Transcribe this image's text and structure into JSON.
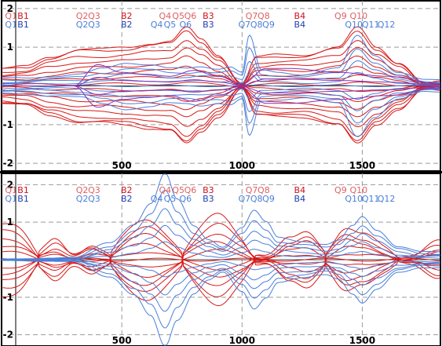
{
  "chart_data": [
    {
      "type": "line",
      "title": "",
      "xlabel": "",
      "ylabel": "",
      "xlim": [
        0,
        1825
      ],
      "ylim": [
        -2.2,
        2.2
      ],
      "grid": true,
      "x_ticks": [
        500,
        1000,
        1500
      ],
      "y_ticks": [
        2,
        1,
        -1,
        -2
      ],
      "markers_top": [
        {
          "label": "Q1",
          "x": 40,
          "color": "#e06060"
        },
        {
          "label": "B1",
          "x": 90,
          "color": "#d0101a"
        },
        {
          "label": "Q2",
          "x": 335,
          "color": "#e06060"
        },
        {
          "label": "Q3",
          "x": 385,
          "color": "#e06060"
        },
        {
          "label": "B2",
          "x": 520,
          "color": "#d0101a"
        },
        {
          "label": "Q4",
          "x": 680,
          "color": "#e06060"
        },
        {
          "label": "Q5",
          "x": 735,
          "color": "#e06060"
        },
        {
          "label": "Q6",
          "x": 785,
          "color": "#e06060"
        },
        {
          "label": "B3",
          "x": 860,
          "color": "#d0101a"
        },
        {
          "label": "Q7",
          "x": 1040,
          "color": "#e06060"
        },
        {
          "label": "Q8",
          "x": 1090,
          "color": "#e06060"
        },
        {
          "label": "B4",
          "x": 1240,
          "color": "#d0101a"
        },
        {
          "label": "Q9",
          "x": 1410,
          "color": "#e06060"
        },
        {
          "label": "Q10",
          "x": 1485,
          "color": "#e06060"
        }
      ],
      "markers_bottom": [
        {
          "label": "Q1",
          "x": 40,
          "color": "#4a7fd8"
        },
        {
          "label": "B1",
          "x": 90,
          "color": "#2040b0"
        },
        {
          "label": "Q2",
          "x": 335,
          "color": "#4a7fd8"
        },
        {
          "label": "Q3",
          "x": 385,
          "color": "#4a7fd8"
        },
        {
          "label": "B2",
          "x": 520,
          "color": "#2040b0"
        },
        {
          "label": "Q4",
          "x": 645,
          "color": "#4a7fd8"
        },
        {
          "label": "Q5",
          "x": 700,
          "color": "#4a7fd8"
        },
        {
          "label": "Q6",
          "x": 765,
          "color": "#4a7fd8"
        },
        {
          "label": "B3",
          "x": 860,
          "color": "#2040b0"
        },
        {
          "label": "Q7",
          "x": 1010,
          "color": "#4a7fd8"
        },
        {
          "label": "Q8",
          "x": 1060,
          "color": "#4a7fd8"
        },
        {
          "label": "Q9",
          "x": 1110,
          "color": "#4a7fd8"
        },
        {
          "label": "B4",
          "x": 1240,
          "color": "#2040b0"
        },
        {
          "label": "Q10",
          "x": 1465,
          "color": "#4a7fd8"
        },
        {
          "label": "Q11",
          "x": 1535,
          "color": "#4a7fd8"
        },
        {
          "label": "Q12",
          "x": 1600,
          "color": "#4a7fd8"
        }
      ],
      "series_groups": [
        {
          "color": "#d81818",
          "x": [
            0,
            100,
            200,
            330,
            420,
            520,
            620,
            700,
            770,
            830,
            900,
            1000,
            1060,
            1150,
            1250,
            1400,
            1480,
            1560,
            1650,
            1760,
            1825
          ],
          "envelope": [
            0.45,
            0.5,
            0.75,
            0.95,
            0.95,
            1.0,
            1.1,
            1.15,
            1.5,
            1.2,
            0.8,
            0.05,
            0.75,
            0.8,
            0.8,
            1.0,
            1.5,
            1.0,
            0.6,
            0.05,
            0.1
          ],
          "factors": [
            1,
            0.95,
            0.8,
            0.65,
            0.5,
            0.35,
            0.2,
            0.05,
            -0.1,
            -0.25,
            -0.4,
            -0.55,
            -0.7,
            -0.85,
            -0.95,
            -1
          ],
          "wobble_amp": 0.03
        },
        {
          "color": "#4a7fd8",
          "x": [
            0,
            100,
            200,
            330,
            420,
            520,
            620,
            700,
            770,
            830,
            900,
            950,
            1000,
            1030,
            1080,
            1150,
            1250,
            1400,
            1480,
            1550,
            1650,
            1760,
            1825
          ],
          "envelope": [
            0.2,
            0.2,
            0.25,
            0.3,
            0.45,
            0.6,
            0.55,
            0.45,
            0.45,
            0.5,
            0.45,
            0.5,
            0.35,
            1.3,
            0.4,
            0.35,
            0.3,
            0.45,
            1.3,
            0.8,
            0.35,
            0.15,
            0.15
          ],
          "factors": [
            1,
            0.75,
            0.5,
            0.25,
            0.0,
            -0.25,
            -0.5,
            -0.75,
            -1
          ],
          "wobble_amp": 0.02
        },
        {
          "color": "#8a2fb0",
          "x": [
            0,
            300,
            400,
            500,
            600,
            700,
            800,
            900,
            1000,
            1100,
            1200,
            1400,
            1600,
            1825
          ],
          "envelope": [
            0.0,
            0.0,
            0.55,
            0.35,
            0.3,
            0.25,
            0.4,
            0.25,
            0.05,
            0.45,
            0.45,
            0.35,
            0.25,
            0.05
          ],
          "factors": [
            1,
            0.4,
            -0.4,
            -1
          ],
          "wobble_amp": 0.0
        }
      ]
    },
    {
      "type": "line",
      "title": "",
      "xlabel": "",
      "ylabel": "",
      "xlim": [
        0,
        1825
      ],
      "ylim": [
        -2.3,
        2.3
      ],
      "grid": true,
      "x_ticks": [
        500,
        1000,
        1500
      ],
      "y_ticks": [
        2,
        1,
        -1,
        -2
      ],
      "markers_top": [
        {
          "label": "Q1",
          "x": 40,
          "color": "#e06060"
        },
        {
          "label": "B1",
          "x": 90,
          "color": "#d0101a"
        },
        {
          "label": "Q2",
          "x": 335,
          "color": "#e06060"
        },
        {
          "label": "Q3",
          "x": 385,
          "color": "#e06060"
        },
        {
          "label": "B2",
          "x": 520,
          "color": "#d0101a"
        },
        {
          "label": "Q4",
          "x": 680,
          "color": "#e06060"
        },
        {
          "label": "Q5",
          "x": 735,
          "color": "#e06060"
        },
        {
          "label": "Q6",
          "x": 785,
          "color": "#e06060"
        },
        {
          "label": "B3",
          "x": 860,
          "color": "#d0101a"
        },
        {
          "label": "Q7",
          "x": 1040,
          "color": "#e06060"
        },
        {
          "label": "Q8",
          "x": 1090,
          "color": "#e06060"
        },
        {
          "label": "B4",
          "x": 1240,
          "color": "#d0101a"
        },
        {
          "label": "Q9",
          "x": 1410,
          "color": "#e06060"
        },
        {
          "label": "Q10",
          "x": 1485,
          "color": "#e06060"
        }
      ],
      "markers_bottom": [
        {
          "label": "Q1",
          "x": 40,
          "color": "#4a7fd8"
        },
        {
          "label": "B1",
          "x": 90,
          "color": "#2040b0"
        },
        {
          "label": "Q2",
          "x": 335,
          "color": "#4a7fd8"
        },
        {
          "label": "Q3",
          "x": 385,
          "color": "#4a7fd8"
        },
        {
          "label": "B2",
          "x": 520,
          "color": "#2040b0"
        },
        {
          "label": "Q4",
          "x": 645,
          "color": "#4a7fd8"
        },
        {
          "label": "Q5",
          "x": 700,
          "color": "#4a7fd8"
        },
        {
          "label": "Q6",
          "x": 765,
          "color": "#4a7fd8"
        },
        {
          "label": "B3",
          "x": 860,
          "color": "#2040b0"
        },
        {
          "label": "Q7",
          "x": 1010,
          "color": "#4a7fd8"
        },
        {
          "label": "Q8",
          "x": 1060,
          "color": "#4a7fd8"
        },
        {
          "label": "Q9",
          "x": 1110,
          "color": "#4a7fd8"
        },
        {
          "label": "B4",
          "x": 1240,
          "color": "#2040b0"
        },
        {
          "label": "Q10",
          "x": 1465,
          "color": "#4a7fd8"
        },
        {
          "label": "Q11",
          "x": 1535,
          "color": "#4a7fd8"
        },
        {
          "label": "Q12",
          "x": 1600,
          "color": "#4a7fd8"
        }
      ],
      "series_groups": [
        {
          "color": "#d81818",
          "x": [
            0,
            100,
            200,
            300,
            400,
            500,
            600,
            700,
            800,
            900,
            1000,
            1100,
            1200,
            1300,
            1400,
            1500,
            1600,
            1700,
            1825
          ],
          "envelope": [
            0.95,
            1.1,
            0.8,
            0.15,
            0.6,
            1.05,
            1.1,
            0.95,
            1.1,
            1.2,
            0.95,
            0.15,
            0.6,
            1.1,
            1.2,
            0.7,
            0.5,
            0.15,
            0.5
          ],
          "factors": [
            1,
            0.8,
            0.6,
            0.4,
            0.2,
            0.0,
            -0.2,
            -0.4,
            -0.6,
            -0.8,
            -1
          ],
          "twist": true,
          "wobble_amp": 0.04
        },
        {
          "color": "#4a7fd8",
          "x": [
            0,
            300,
            450,
            550,
            620,
            680,
            730,
            800,
            860,
            920,
            1000,
            1050,
            1100,
            1150,
            1250,
            1350,
            1400,
            1460,
            1500,
            1560,
            1650,
            1750,
            1825
          ],
          "envelope": [
            0.0,
            0.05,
            0.45,
            0.95,
            1.5,
            2.3,
            1.6,
            0.9,
            0.55,
            0.35,
            0.85,
            1.3,
            1.0,
            0.6,
            0.5,
            0.4,
            0.5,
            0.9,
            1.15,
            0.8,
            0.35,
            0.2,
            0.2
          ],
          "factors": [
            1,
            0.8,
            0.6,
            0.4,
            0.2,
            -0.2,
            -0.4,
            -0.6,
            -0.8,
            -1
          ],
          "wobble_amp": 0.02
        }
      ]
    }
  ]
}
